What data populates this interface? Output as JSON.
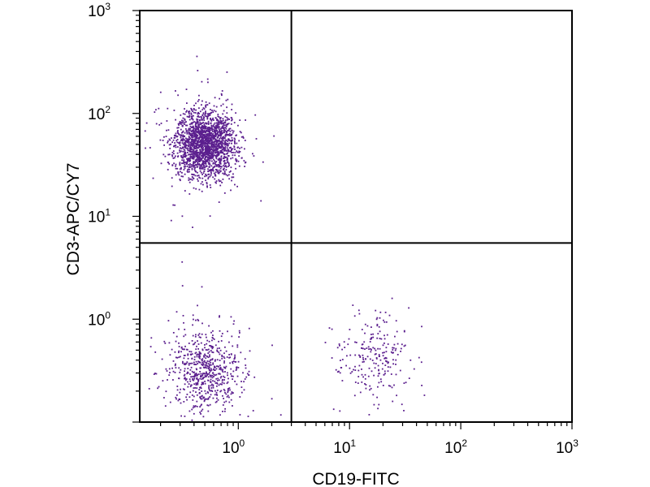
{
  "chart_data": {
    "type": "scatter",
    "xlabel": "CD19-FITC",
    "ylabel": "CD3-APC/CY7",
    "x_scale": "log",
    "y_scale": "log",
    "xlim": [
      0.13,
      1000
    ],
    "ylim": [
      0.1,
      1000
    ],
    "x_ticks": [
      {
        "base": "10",
        "exp": "0",
        "value": 1
      },
      {
        "base": "10",
        "exp": "1",
        "value": 10
      },
      {
        "base": "10",
        "exp": "2",
        "value": 100
      },
      {
        "base": "10",
        "exp": "3",
        "value": 1000
      }
    ],
    "y_ticks": [
      {
        "base": "10",
        "exp": "0",
        "value": 1
      },
      {
        "base": "10",
        "exp": "1",
        "value": 10
      },
      {
        "base": "10",
        "exp": "2",
        "value": 100
      },
      {
        "base": "10",
        "exp": "3",
        "value": 1000
      }
    ],
    "quadrant_gates": {
      "x": 3.0,
      "y": 5.5
    },
    "point_color": "#5b1f8e",
    "populations": [
      {
        "label": "",
        "count": 2000,
        "x_center": 0.5,
        "y_center": 50,
        "x_spread_log10": 0.13,
        "y_spread_log10": 0.16
      },
      {
        "label": "",
        "count": 650,
        "x_center": 0.5,
        "y_center": 0.32,
        "x_spread_log10": 0.16,
        "y_spread_log10": 0.19
      },
      {
        "label": "",
        "count": 230,
        "x_center": 16,
        "y_center": 0.42,
        "x_spread_log10": 0.17,
        "y_spread_log10": 0.2
      }
    ],
    "grid": false,
    "legend": "none"
  }
}
